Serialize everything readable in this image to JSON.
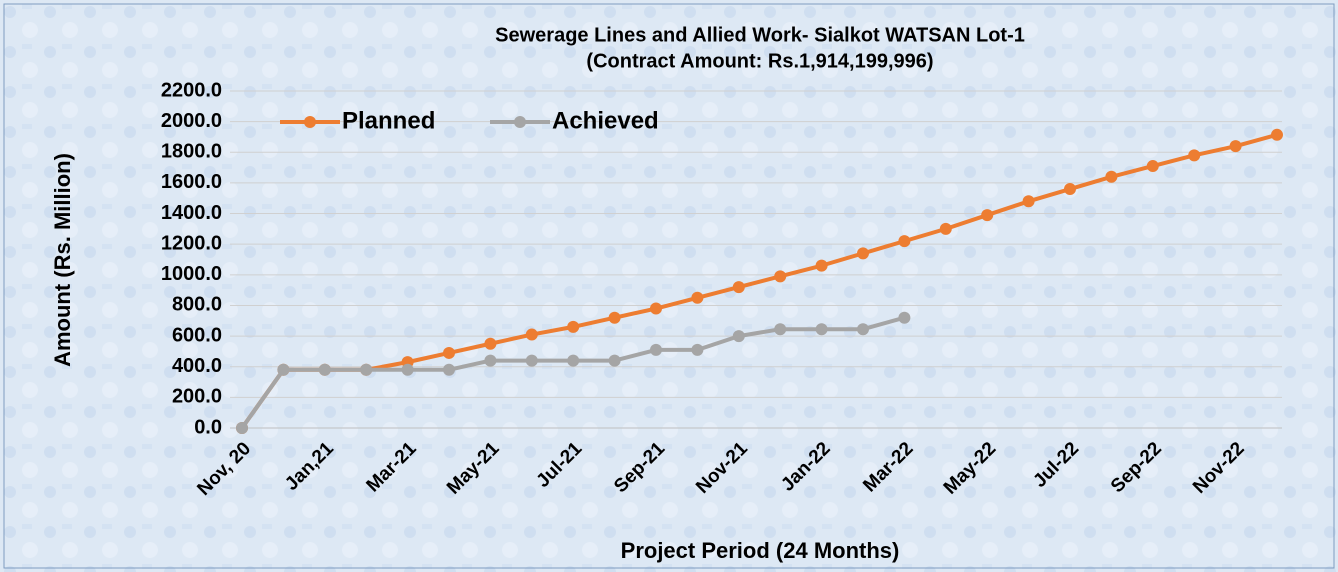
{
  "chart_data": {
    "type": "line",
    "title": "Sewerage Lines and Allied Work- Sialkot WATSAN Lot-1",
    "subtitle": "(Contract Amount: Rs.1,914,199,996)",
    "x_label": "Project Period (24 Months)",
    "y_label": "Amount (Rs. Million)",
    "categories": [
      "Nov, 20",
      null,
      "Jan,21",
      null,
      "Mar-21",
      null,
      "May-21",
      null,
      "Jul-21",
      null,
      "Sep-21",
      null,
      "Nov-21",
      null,
      "Jan-22",
      null,
      "Mar-22",
      null,
      "May-22",
      null,
      "Jul-22",
      null,
      "Sep-22",
      null,
      "Nov-22",
      null
    ],
    "series": [
      {
        "name": "Planned",
        "color": "#ed7d31",
        "values": [
          0,
          380,
          380,
          380,
          430,
          490,
          550,
          610,
          660,
          720,
          780,
          850,
          920,
          990,
          1060,
          1140,
          1220,
          1300,
          1390,
          1480,
          1560,
          1640,
          1710,
          1780,
          1840,
          1914
        ]
      },
      {
        "name": "Achieved",
        "color": "#a5a5a5",
        "values": [
          0,
          380,
          380,
          380,
          380,
          380,
          440,
          440,
          440,
          440,
          510,
          510,
          600,
          645,
          645,
          645,
          720,
          null,
          null,
          null,
          null,
          null,
          null,
          null,
          null,
          null
        ]
      }
    ],
    "ylim": [
      0,
      2200
    ],
    "yticks": [
      {
        "value": 0,
        "label": "0.0"
      },
      {
        "value": 200,
        "label": "200.0"
      },
      {
        "value": 400,
        "label": "400.0"
      },
      {
        "value": 600,
        "label": "600.0"
      },
      {
        "value": 800,
        "label": "800.0"
      },
      {
        "value": 1000,
        "label": "1000.0"
      },
      {
        "value": 1200,
        "label": "1200.0"
      },
      {
        "value": 1400,
        "label": "1400.0"
      },
      {
        "value": 1600,
        "label": "1600.0"
      },
      {
        "value": 1800,
        "label": "1800.0"
      },
      {
        "value": 2000,
        "label": "2000.0"
      },
      {
        "value": 2200,
        "label": "2200.0"
      }
    ],
    "grid": true,
    "legend": "top-left"
  }
}
